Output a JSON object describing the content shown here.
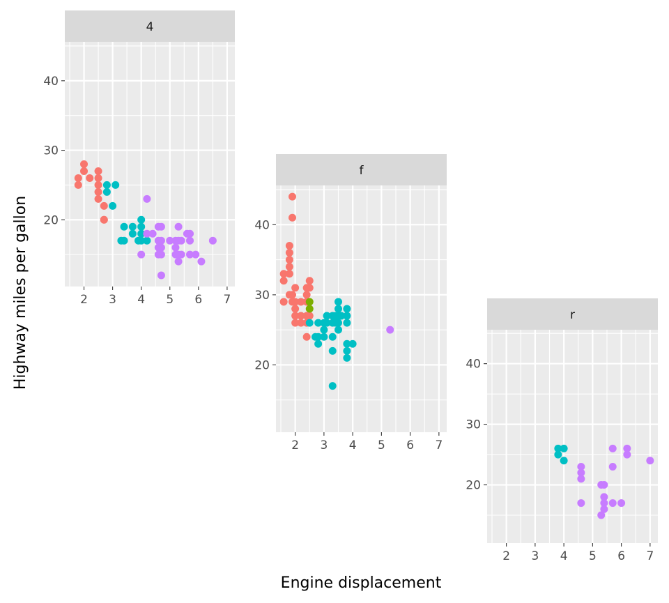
{
  "chart_data": {
    "type": "scatter",
    "xlabel": "Engine displacement",
    "ylabel": "Highway miles per gallon",
    "xlim": [
      1.33,
      7.27
    ],
    "ylim": [
      10.4,
      45.6
    ],
    "xticks": [
      2,
      3,
      4,
      5,
      6,
      7
    ],
    "yticks": [
      20,
      30,
      40
    ],
    "grid": true,
    "legend": "none",
    "color_groups": {
      "4": "#F8766D",
      "5": "#7CAE00",
      "6": "#00BFC4",
      "8": "#C77CFF"
    },
    "panels": [
      {
        "label": "4",
        "points": {
          "4": [
            [
              1.8,
              26
            ],
            [
              1.8,
              25
            ],
            [
              2.0,
              28
            ],
            [
              2.0,
              27
            ],
            [
              2.2,
              26
            ],
            [
              2.5,
              27
            ],
            [
              2.5,
              26
            ],
            [
              2.5,
              25
            ],
            [
              2.5,
              24
            ],
            [
              2.5,
              23
            ],
            [
              2.7,
              22
            ],
            [
              2.7,
              20
            ],
            [
              2.7,
              20
            ]
          ],
          "6": [
            [
              2.8,
              25
            ],
            [
              2.8,
              24
            ],
            [
              3.1,
              25
            ],
            [
              3.0,
              22
            ],
            [
              3.3,
              17
            ],
            [
              3.4,
              17
            ],
            [
              3.4,
              19
            ],
            [
              3.7,
              19
            ],
            [
              3.7,
              18
            ],
            [
              4.0,
              20
            ],
            [
              4.0,
              19
            ],
            [
              4.0,
              18
            ],
            [
              4.0,
              17
            ],
            [
              4.2,
              17
            ],
            [
              3.9,
              17
            ]
          ],
          "8": [
            [
              4.2,
              23
            ],
            [
              4.0,
              15
            ],
            [
              4.2,
              18
            ],
            [
              4.4,
              18
            ],
            [
              4.6,
              19
            ],
            [
              4.7,
              19
            ],
            [
              4.6,
              17
            ],
            [
              4.7,
              17
            ],
            [
              4.6,
              16
            ],
            [
              4.7,
              16
            ],
            [
              4.6,
              15
            ],
            [
              4.7,
              15
            ],
            [
              4.7,
              12
            ],
            [
              5.0,
              17
            ],
            [
              5.2,
              17
            ],
            [
              5.3,
              17
            ],
            [
              5.2,
              16
            ],
            [
              5.2,
              15
            ],
            [
              5.3,
              15
            ],
            [
              5.4,
              15
            ],
            [
              5.3,
              14
            ],
            [
              5.4,
              17
            ],
            [
              5.3,
              19
            ],
            [
              5.6,
              18
            ],
            [
              5.7,
              18
            ],
            [
              5.7,
              17
            ],
            [
              5.7,
              15
            ],
            [
              5.9,
              15
            ],
            [
              6.1,
              14
            ],
            [
              6.5,
              17
            ]
          ]
        }
      },
      {
        "label": "f",
        "points": {
          "4": [
            [
              1.9,
              44
            ],
            [
              1.9,
              41
            ],
            [
              1.8,
              37
            ],
            [
              1.8,
              36
            ],
            [
              1.8,
              35
            ],
            [
              1.8,
              34
            ],
            [
              1.8,
              33
            ],
            [
              1.6,
              33
            ],
            [
              1.6,
              32
            ],
            [
              1.6,
              29
            ],
            [
              2.0,
              31
            ],
            [
              1.9,
              30
            ],
            [
              1.8,
              30
            ],
            [
              2.0,
              29
            ],
            [
              1.9,
              29
            ],
            [
              2.0,
              28
            ],
            [
              2.0,
              27
            ],
            [
              2.0,
              26
            ],
            [
              2.2,
              27
            ],
            [
              2.2,
              26
            ],
            [
              2.4,
              31
            ],
            [
              2.5,
              32
            ],
            [
              2.5,
              31
            ],
            [
              2.4,
              30
            ],
            [
              2.4,
              29
            ],
            [
              2.4,
              27
            ],
            [
              2.4,
              26
            ],
            [
              2.4,
              24
            ],
            [
              2.2,
              29
            ],
            [
              2.5,
              27
            ]
          ],
          "5": [
            [
              2.5,
              29
            ],
            [
              2.5,
              28
            ]
          ],
          "6": [
            [
              2.5,
              26
            ],
            [
              2.8,
              26
            ],
            [
              2.7,
              24
            ],
            [
              2.8,
              24
            ],
            [
              2.8,
              23
            ],
            [
              3.0,
              26
            ],
            [
              3.0,
              25
            ],
            [
              3.0,
              24
            ],
            [
              3.1,
              27
            ],
            [
              3.1,
              26
            ],
            [
              3.3,
              27
            ],
            [
              3.3,
              26
            ],
            [
              3.3,
              24
            ],
            [
              3.3,
              22
            ],
            [
              3.5,
              29
            ],
            [
              3.5,
              28
            ],
            [
              3.5,
              27
            ],
            [
              3.5,
              26
            ],
            [
              3.5,
              25
            ],
            [
              3.6,
              27
            ],
            [
              3.8,
              28
            ],
            [
              3.8,
              27
            ],
            [
              3.8,
              26
            ],
            [
              3.8,
              23
            ],
            [
              3.8,
              22
            ],
            [
              3.8,
              21
            ],
            [
              4.0,
              23
            ],
            [
              3.3,
              17
            ],
            [
              3.4,
              26
            ],
            [
              3.4,
              27
            ]
          ],
          "8": [
            [
              5.3,
              25
            ]
          ]
        }
      },
      {
        "label": "r",
        "points": {
          "6": [
            [
              3.8,
              26
            ],
            [
              4.0,
              26
            ],
            [
              3.8,
              25
            ],
            [
              4.0,
              24
            ]
          ],
          "8": [
            [
              4.6,
              23
            ],
            [
              4.6,
              22
            ],
            [
              4.6,
              21
            ],
            [
              4.6,
              17
            ],
            [
              5.4,
              20
            ],
            [
              5.3,
              20
            ],
            [
              5.4,
              18
            ],
            [
              5.4,
              17
            ],
            [
              5.4,
              16
            ],
            [
              5.3,
              15
            ],
            [
              5.7,
              26
            ],
            [
              5.7,
              23
            ],
            [
              5.7,
              17
            ],
            [
              6.0,
              17
            ],
            [
              6.2,
              26
            ],
            [
              6.2,
              25
            ],
            [
              7.0,
              24
            ]
          ]
        }
      }
    ]
  }
}
